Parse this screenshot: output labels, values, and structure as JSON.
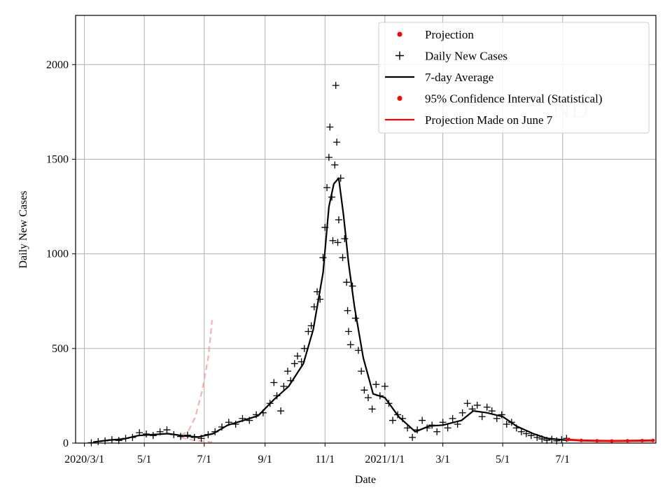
{
  "chart_data": {
    "type": "line",
    "xlabel": "Date",
    "ylabel": "Daily New Cases",
    "ylim": [
      0,
      2260
    ],
    "yticks": [
      0,
      500,
      1000,
      1500,
      2000
    ],
    "grid": true,
    "legend_position": "top-right",
    "x_ticks": [
      {
        "date": "2020-03-01",
        "label": "2020/3/1"
      },
      {
        "date": "2020-05-01",
        "label": "5/1"
      },
      {
        "date": "2020-07-01",
        "label": "7/1"
      },
      {
        "date": "2020-09-01",
        "label": "9/1"
      },
      {
        "date": "2020-11-01",
        "label": "11/1"
      },
      {
        "date": "2021-01-01",
        "label": "2021/1/1"
      },
      {
        "date": "2021-03-01",
        "label": "3/1"
      },
      {
        "date": "2021-05-01",
        "label": "5/1"
      },
      {
        "date": "2021-07-01",
        "label": "7/1"
      }
    ],
    "xlim": [
      "2020-02-21",
      "2021-10-04"
    ],
    "legend": [
      {
        "label": "Projection",
        "marker": "dot",
        "color": "#ff0000"
      },
      {
        "label": "Daily New Cases",
        "marker": "plus",
        "color": "#000000"
      },
      {
        "label": "7-day Average",
        "marker": "line",
        "color": "#000000"
      },
      {
        "label": "95% Confidence Interval (Statistical)",
        "marker": "dot",
        "color": "#ff0000"
      },
      {
        "label": "Projection Made on June 7",
        "marker": "line",
        "color": "#ff0000"
      }
    ],
    "watermark": "ND",
    "series": [
      {
        "name": "7-day Average",
        "color": "#000000",
        "points": [
          [
            "2020-03-10",
            5
          ],
          [
            "2020-03-25",
            15
          ],
          [
            "2020-04-10",
            22
          ],
          [
            "2020-04-25",
            40
          ],
          [
            "2020-05-10",
            45
          ],
          [
            "2020-05-25",
            50
          ],
          [
            "2020-06-10",
            38
          ],
          [
            "2020-06-25",
            32
          ],
          [
            "2020-07-10",
            50
          ],
          [
            "2020-07-25",
            95
          ],
          [
            "2020-08-10",
            120
          ],
          [
            "2020-08-25",
            145
          ],
          [
            "2020-09-10",
            230
          ],
          [
            "2020-09-25",
            300
          ],
          [
            "2020-10-10",
            420
          ],
          [
            "2020-10-20",
            600
          ],
          [
            "2020-10-30",
            900
          ],
          [
            "2020-11-05",
            1250
          ],
          [
            "2020-11-10",
            1370
          ],
          [
            "2020-11-15",
            1400
          ],
          [
            "2020-11-20",
            1200
          ],
          [
            "2020-11-25",
            950
          ],
          [
            "2020-12-01",
            720
          ],
          [
            "2020-12-10",
            450
          ],
          [
            "2020-12-20",
            260
          ],
          [
            "2021-01-01",
            240
          ],
          [
            "2021-01-15",
            140
          ],
          [
            "2021-02-01",
            60
          ],
          [
            "2021-02-15",
            90
          ],
          [
            "2021-03-01",
            95
          ],
          [
            "2021-03-20",
            120
          ],
          [
            "2021-04-01",
            170
          ],
          [
            "2021-04-15",
            160
          ],
          [
            "2021-05-01",
            140
          ],
          [
            "2021-05-15",
            90
          ],
          [
            "2021-06-01",
            50
          ],
          [
            "2021-06-15",
            25
          ],
          [
            "2021-07-05",
            15
          ]
        ]
      },
      {
        "name": "Daily New Cases",
        "color": "#000000",
        "points": [
          [
            "2020-03-08",
            2
          ],
          [
            "2020-03-15",
            8
          ],
          [
            "2020-03-22",
            12
          ],
          [
            "2020-03-29",
            18
          ],
          [
            "2020-04-05",
            14
          ],
          [
            "2020-04-12",
            25
          ],
          [
            "2020-04-19",
            30
          ],
          [
            "2020-04-26",
            55
          ],
          [
            "2020-05-03",
            48
          ],
          [
            "2020-05-10",
            40
          ],
          [
            "2020-05-17",
            60
          ],
          [
            "2020-05-24",
            70
          ],
          [
            "2020-05-31",
            45
          ],
          [
            "2020-06-07",
            35
          ],
          [
            "2020-06-14",
            42
          ],
          [
            "2020-06-21",
            30
          ],
          [
            "2020-06-28",
            25
          ],
          [
            "2020-07-05",
            45
          ],
          [
            "2020-07-12",
            60
          ],
          [
            "2020-07-19",
            85
          ],
          [
            "2020-07-26",
            110
          ],
          [
            "2020-08-02",
            100
          ],
          [
            "2020-08-09",
            130
          ],
          [
            "2020-08-16",
            120
          ],
          [
            "2020-08-23",
            150
          ],
          [
            "2020-08-30",
            160
          ],
          [
            "2020-09-06",
            210
          ],
          [
            "2020-09-10",
            320
          ],
          [
            "2020-09-13",
            250
          ],
          [
            "2020-09-17",
            170
          ],
          [
            "2020-09-20",
            300
          ],
          [
            "2020-09-24",
            380
          ],
          [
            "2020-09-27",
            330
          ],
          [
            "2020-10-01",
            420
          ],
          [
            "2020-10-04",
            460
          ],
          [
            "2020-10-08",
            430
          ],
          [
            "2020-10-11",
            500
          ],
          [
            "2020-10-15",
            590
          ],
          [
            "2020-10-18",
            620
          ],
          [
            "2020-10-21",
            720
          ],
          [
            "2020-10-24",
            800
          ],
          [
            "2020-10-27",
            760
          ],
          [
            "2020-10-30",
            980
          ],
          [
            "2020-11-01",
            1140
          ],
          [
            "2020-11-03",
            1350
          ],
          [
            "2020-11-05",
            1510
          ],
          [
            "2020-11-06",
            1670
          ],
          [
            "2020-11-08",
            1300
          ],
          [
            "2020-11-09",
            1070
          ],
          [
            "2020-11-11",
            1470
          ],
          [
            "2020-11-12",
            1890
          ],
          [
            "2020-11-13",
            1590
          ],
          [
            "2020-11-14",
            1060
          ],
          [
            "2020-11-15",
            1180
          ],
          [
            "2020-11-17",
            1400
          ],
          [
            "2020-11-19",
            980
          ],
          [
            "2020-11-21",
            1080
          ],
          [
            "2020-11-23",
            850
          ],
          [
            "2020-11-24",
            700
          ],
          [
            "2020-11-25",
            590
          ],
          [
            "2020-11-27",
            520
          ],
          [
            "2020-11-29",
            830
          ],
          [
            "2020-12-02",
            660
          ],
          [
            "2020-12-05",
            490
          ],
          [
            "2020-12-08",
            380
          ],
          [
            "2020-12-11",
            280
          ],
          [
            "2020-12-15",
            240
          ],
          [
            "2020-12-19",
            180
          ],
          [
            "2020-12-23",
            310
          ],
          [
            "2020-12-27",
            250
          ],
          [
            "2021-01-01",
            300
          ],
          [
            "2021-01-05",
            210
          ],
          [
            "2021-01-09",
            120
          ],
          [
            "2021-01-14",
            150
          ],
          [
            "2021-01-19",
            130
          ],
          [
            "2021-01-24",
            80
          ],
          [
            "2021-01-29",
            30
          ],
          [
            "2021-02-03",
            70
          ],
          [
            "2021-02-08",
            120
          ],
          [
            "2021-02-13",
            80
          ],
          [
            "2021-02-18",
            95
          ],
          [
            "2021-02-23",
            60
          ],
          [
            "2021-03-01",
            110
          ],
          [
            "2021-03-06",
            80
          ],
          [
            "2021-03-11",
            130
          ],
          [
            "2021-03-16",
            100
          ],
          [
            "2021-03-21",
            160
          ],
          [
            "2021-03-26",
            210
          ],
          [
            "2021-03-31",
            180
          ],
          [
            "2021-04-05",
            200
          ],
          [
            "2021-04-10",
            140
          ],
          [
            "2021-04-15",
            190
          ],
          [
            "2021-04-20",
            170
          ],
          [
            "2021-04-25",
            130
          ],
          [
            "2021-04-30",
            150
          ],
          [
            "2021-05-05",
            100
          ],
          [
            "2021-05-10",
            110
          ],
          [
            "2021-05-15",
            80
          ],
          [
            "2021-05-20",
            60
          ],
          [
            "2021-05-25",
            50
          ],
          [
            "2021-05-30",
            40
          ],
          [
            "2021-06-05",
            30
          ],
          [
            "2021-06-10",
            22
          ],
          [
            "2021-06-15",
            15
          ],
          [
            "2021-06-20",
            20
          ],
          [
            "2021-06-25",
            12
          ],
          [
            "2021-06-30",
            18
          ],
          [
            "2021-07-05",
            25
          ]
        ]
      },
      {
        "name": "Projection",
        "color": "#ff0000",
        "points": [
          [
            "2021-07-06",
            18
          ],
          [
            "2021-07-20",
            14
          ],
          [
            "2021-08-05",
            12
          ],
          [
            "2021-08-20",
            11
          ],
          [
            "2021-09-05",
            12
          ],
          [
            "2021-09-20",
            13
          ],
          [
            "2021-10-01",
            14
          ]
        ]
      },
      {
        "name": "Projection Made on June 7",
        "color": "#ffaaaa",
        "points": [
          [
            "2020-06-07",
            40
          ],
          [
            "2020-06-15",
            65
          ],
          [
            "2020-06-22",
            140
          ],
          [
            "2020-06-29",
            280
          ],
          [
            "2020-07-05",
            450
          ],
          [
            "2020-07-09",
            650
          ]
        ]
      },
      {
        "name": "Projection Made on June 7 (lower)",
        "color": "#ffaaaa",
        "points": [
          [
            "2020-06-07",
            30
          ],
          [
            "2020-06-20",
            15
          ],
          [
            "2020-07-09",
            5
          ]
        ]
      }
    ]
  }
}
